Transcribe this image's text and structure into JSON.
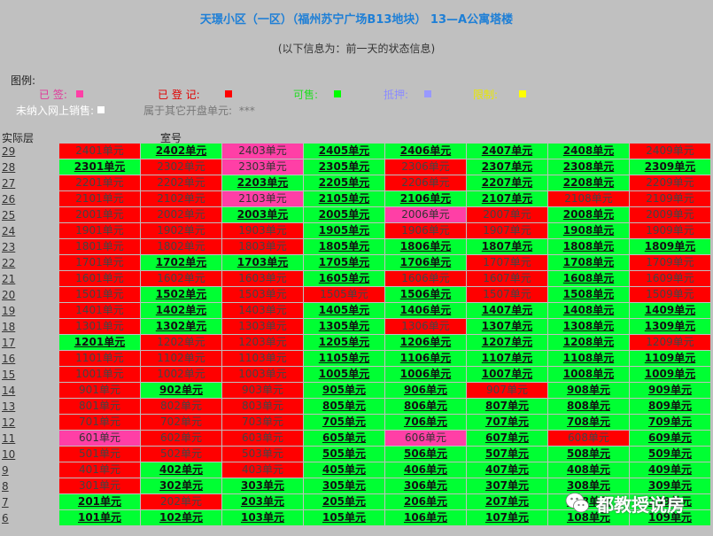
{
  "header": {
    "title": "天璟小区（一区）（福州苏宁广场B13地块） 13—A公寓塔楼",
    "subtitle": "(以下信息为：前一天的状态信息)"
  },
  "legend": {
    "title": "图例:",
    "items": [
      {
        "key": "signed",
        "label": "已 签:",
        "text_color": "#e0389a",
        "swatch": "#ff3fa6"
      },
      {
        "key": "registered",
        "label": "已 登 记:",
        "text_color": "#e00000",
        "swatch": "#ff0000"
      },
      {
        "key": "available",
        "label": "可售:",
        "text_color": "#22dd22",
        "swatch": "#00ff00"
      },
      {
        "key": "mortgaged",
        "label": "抵押:",
        "text_color": "#8c8cff",
        "swatch": "#9999ff"
      },
      {
        "key": "restricted",
        "label": "限制:",
        "text_color": "#e8e800",
        "swatch": "#ffff00"
      },
      {
        "key": "not_online",
        "label": "未纳入网上销售:",
        "text_color": "#ffffff",
        "swatch": "#ffffff"
      },
      {
        "key": "other_batch",
        "label": "属于其它开盘单元:",
        "text_color": "#777777",
        "stars": "***"
      }
    ]
  },
  "table": {
    "floor_header": "实际层",
    "room_header": "室号",
    "status_colors": {
      "A": "#00ff33",
      "R": "#ff0000",
      "S": "#ff3fa6"
    },
    "floors": [
      {
        "floor": "29",
        "units": [
          {
            "label": "2401单元",
            "status": "R"
          },
          {
            "label": "2402单元",
            "status": "A"
          },
          {
            "label": "2403单元",
            "status": "S"
          },
          {
            "label": "2405单元",
            "status": "A"
          },
          {
            "label": "2406单元",
            "status": "A"
          },
          {
            "label": "2407单元",
            "status": "A"
          },
          {
            "label": "2408单元",
            "status": "A"
          },
          {
            "label": "2409单元",
            "status": "R"
          }
        ]
      },
      {
        "floor": "28",
        "units": [
          {
            "label": "2301单元",
            "status": "A"
          },
          {
            "label": "2302单元",
            "status": "R"
          },
          {
            "label": "2303单元",
            "status": "S"
          },
          {
            "label": "2305单元",
            "status": "A"
          },
          {
            "label": "2306单元",
            "status": "R"
          },
          {
            "label": "2307单元",
            "status": "A"
          },
          {
            "label": "2308单元",
            "status": "A"
          },
          {
            "label": "2309单元",
            "status": "A"
          }
        ]
      },
      {
        "floor": "27",
        "units": [
          {
            "label": "2201单元",
            "status": "R"
          },
          {
            "label": "2202单元",
            "status": "R"
          },
          {
            "label": "2203单元",
            "status": "A"
          },
          {
            "label": "2205单元",
            "status": "A"
          },
          {
            "label": "2206单元",
            "status": "R"
          },
          {
            "label": "2207单元",
            "status": "A"
          },
          {
            "label": "2208单元",
            "status": "A"
          },
          {
            "label": "2209单元",
            "status": "R"
          }
        ]
      },
      {
        "floor": "26",
        "units": [
          {
            "label": "2101单元",
            "status": "R"
          },
          {
            "label": "2102单元",
            "status": "R"
          },
          {
            "label": "2103单元",
            "status": "S"
          },
          {
            "label": "2105单元",
            "status": "A"
          },
          {
            "label": "2106单元",
            "status": "A"
          },
          {
            "label": "2107单元",
            "status": "A"
          },
          {
            "label": "2108单元",
            "status": "R"
          },
          {
            "label": "2109单元",
            "status": "R"
          }
        ]
      },
      {
        "floor": "25",
        "units": [
          {
            "label": "2001单元",
            "status": "R"
          },
          {
            "label": "2002单元",
            "status": "R"
          },
          {
            "label": "2003单元",
            "status": "A"
          },
          {
            "label": "2005单元",
            "status": "A"
          },
          {
            "label": "2006单元",
            "status": "S"
          },
          {
            "label": "2007单元",
            "status": "R"
          },
          {
            "label": "2008单元",
            "status": "A"
          },
          {
            "label": "2009单元",
            "status": "R"
          }
        ]
      },
      {
        "floor": "24",
        "units": [
          {
            "label": "1901单元",
            "status": "R"
          },
          {
            "label": "1902单元",
            "status": "R"
          },
          {
            "label": "1903单元",
            "status": "R"
          },
          {
            "label": "1905单元",
            "status": "A"
          },
          {
            "label": "1906单元",
            "status": "R"
          },
          {
            "label": "1907单元",
            "status": "R"
          },
          {
            "label": "1908单元",
            "status": "A"
          },
          {
            "label": "1909单元",
            "status": "R"
          }
        ]
      },
      {
        "floor": "23",
        "units": [
          {
            "label": "1801单元",
            "status": "R"
          },
          {
            "label": "1802单元",
            "status": "R"
          },
          {
            "label": "1803单元",
            "status": "R"
          },
          {
            "label": "1805单元",
            "status": "A"
          },
          {
            "label": "1806单元",
            "status": "A"
          },
          {
            "label": "1807单元",
            "status": "A"
          },
          {
            "label": "1808单元",
            "status": "A"
          },
          {
            "label": "1809单元",
            "status": "A"
          }
        ]
      },
      {
        "floor": "22",
        "units": [
          {
            "label": "1701单元",
            "status": "R"
          },
          {
            "label": "1702单元",
            "status": "A"
          },
          {
            "label": "1703单元",
            "status": "A"
          },
          {
            "label": "1705单元",
            "status": "A"
          },
          {
            "label": "1706单元",
            "status": "A"
          },
          {
            "label": "1707单元",
            "status": "R"
          },
          {
            "label": "1708单元",
            "status": "A"
          },
          {
            "label": "1709单元",
            "status": "R"
          }
        ]
      },
      {
        "floor": "21",
        "units": [
          {
            "label": "1601单元",
            "status": "R"
          },
          {
            "label": "1602单元",
            "status": "R"
          },
          {
            "label": "1603单元",
            "status": "R"
          },
          {
            "label": "1605单元",
            "status": "A"
          },
          {
            "label": "1606单元",
            "status": "R"
          },
          {
            "label": "1607单元",
            "status": "R"
          },
          {
            "label": "1608单元",
            "status": "A"
          },
          {
            "label": "1609单元",
            "status": "R"
          }
        ]
      },
      {
        "floor": "20",
        "units": [
          {
            "label": "1501单元",
            "status": "R"
          },
          {
            "label": "1502单元",
            "status": "A"
          },
          {
            "label": "1503单元",
            "status": "R"
          },
          {
            "label": "1505单元",
            "status": "R"
          },
          {
            "label": "1506单元",
            "status": "A"
          },
          {
            "label": "1507单元",
            "status": "R"
          },
          {
            "label": "1508单元",
            "status": "A"
          },
          {
            "label": "1509单元",
            "status": "R"
          }
        ]
      },
      {
        "floor": "19",
        "units": [
          {
            "label": "1401单元",
            "status": "R"
          },
          {
            "label": "1402单元",
            "status": "A"
          },
          {
            "label": "1403单元",
            "status": "R"
          },
          {
            "label": "1405单元",
            "status": "A"
          },
          {
            "label": "1406单元",
            "status": "A"
          },
          {
            "label": "1407单元",
            "status": "A"
          },
          {
            "label": "1408单元",
            "status": "A"
          },
          {
            "label": "1409单元",
            "status": "A"
          }
        ]
      },
      {
        "floor": "18",
        "units": [
          {
            "label": "1301单元",
            "status": "R"
          },
          {
            "label": "1302单元",
            "status": "A"
          },
          {
            "label": "1303单元",
            "status": "R"
          },
          {
            "label": "1305单元",
            "status": "A"
          },
          {
            "label": "1306单元",
            "status": "R"
          },
          {
            "label": "1307单元",
            "status": "A"
          },
          {
            "label": "1308单元",
            "status": "A"
          },
          {
            "label": "1309单元",
            "status": "A"
          }
        ]
      },
      {
        "floor": "17",
        "units": [
          {
            "label": "1201单元",
            "status": "A"
          },
          {
            "label": "1202单元",
            "status": "R"
          },
          {
            "label": "1203单元",
            "status": "R"
          },
          {
            "label": "1205单元",
            "status": "A"
          },
          {
            "label": "1206单元",
            "status": "A"
          },
          {
            "label": "1207单元",
            "status": "A"
          },
          {
            "label": "1208单元",
            "status": "A"
          },
          {
            "label": "1209单元",
            "status": "R"
          }
        ]
      },
      {
        "floor": "16",
        "units": [
          {
            "label": "1101单元",
            "status": "R"
          },
          {
            "label": "1102单元",
            "status": "R"
          },
          {
            "label": "1103单元",
            "status": "R"
          },
          {
            "label": "1105单元",
            "status": "A"
          },
          {
            "label": "1106单元",
            "status": "A"
          },
          {
            "label": "1107单元",
            "status": "A"
          },
          {
            "label": "1108单元",
            "status": "A"
          },
          {
            "label": "1109单元",
            "status": "A"
          }
        ]
      },
      {
        "floor": "15",
        "units": [
          {
            "label": "1001单元",
            "status": "R"
          },
          {
            "label": "1002单元",
            "status": "R"
          },
          {
            "label": "1003单元",
            "status": "R"
          },
          {
            "label": "1005单元",
            "status": "A"
          },
          {
            "label": "1006单元",
            "status": "A"
          },
          {
            "label": "1007单元",
            "status": "A"
          },
          {
            "label": "1008单元",
            "status": "A"
          },
          {
            "label": "1009单元",
            "status": "A"
          }
        ]
      },
      {
        "floor": "14",
        "units": [
          {
            "label": "901单元",
            "status": "R"
          },
          {
            "label": "902单元",
            "status": "A"
          },
          {
            "label": "903单元",
            "status": "R"
          },
          {
            "label": "905单元",
            "status": "A"
          },
          {
            "label": "906单元",
            "status": "A"
          },
          {
            "label": "907单元",
            "status": "R"
          },
          {
            "label": "908单元",
            "status": "A"
          },
          {
            "label": "909单元",
            "status": "A"
          }
        ]
      },
      {
        "floor": "13",
        "units": [
          {
            "label": "801单元",
            "status": "R"
          },
          {
            "label": "802单元",
            "status": "R"
          },
          {
            "label": "803单元",
            "status": "R"
          },
          {
            "label": "805单元",
            "status": "A"
          },
          {
            "label": "806单元",
            "status": "A"
          },
          {
            "label": "807单元",
            "status": "A"
          },
          {
            "label": "808单元",
            "status": "A"
          },
          {
            "label": "809单元",
            "status": "A"
          }
        ]
      },
      {
        "floor": "12",
        "units": [
          {
            "label": "701单元",
            "status": "R"
          },
          {
            "label": "702单元",
            "status": "R"
          },
          {
            "label": "703单元",
            "status": "R"
          },
          {
            "label": "705单元",
            "status": "A"
          },
          {
            "label": "706单元",
            "status": "A"
          },
          {
            "label": "707单元",
            "status": "A"
          },
          {
            "label": "708单元",
            "status": "A"
          },
          {
            "label": "709单元",
            "status": "A"
          }
        ]
      },
      {
        "floor": "11",
        "units": [
          {
            "label": "601单元",
            "status": "S"
          },
          {
            "label": "602单元",
            "status": "R"
          },
          {
            "label": "603单元",
            "status": "R"
          },
          {
            "label": "605单元",
            "status": "A"
          },
          {
            "label": "606单元",
            "status": "S"
          },
          {
            "label": "607单元",
            "status": "A"
          },
          {
            "label": "608单元",
            "status": "R"
          },
          {
            "label": "609单元",
            "status": "A"
          }
        ]
      },
      {
        "floor": "10",
        "units": [
          {
            "label": "501单元",
            "status": "R"
          },
          {
            "label": "502单元",
            "status": "R"
          },
          {
            "label": "503单元",
            "status": "R"
          },
          {
            "label": "505单元",
            "status": "A"
          },
          {
            "label": "506单元",
            "status": "A"
          },
          {
            "label": "507单元",
            "status": "A"
          },
          {
            "label": "508单元",
            "status": "A"
          },
          {
            "label": "509单元",
            "status": "A"
          }
        ]
      },
      {
        "floor": "9",
        "units": [
          {
            "label": "401单元",
            "status": "R"
          },
          {
            "label": "402单元",
            "status": "A"
          },
          {
            "label": "403单元",
            "status": "R"
          },
          {
            "label": "405单元",
            "status": "A"
          },
          {
            "label": "406单元",
            "status": "A"
          },
          {
            "label": "407单元",
            "status": "A"
          },
          {
            "label": "408单元",
            "status": "A"
          },
          {
            "label": "409单元",
            "status": "A"
          }
        ]
      },
      {
        "floor": "8",
        "units": [
          {
            "label": "301单元",
            "status": "R"
          },
          {
            "label": "302单元",
            "status": "A"
          },
          {
            "label": "303单元",
            "status": "A"
          },
          {
            "label": "305单元",
            "status": "A"
          },
          {
            "label": "306单元",
            "status": "A"
          },
          {
            "label": "307单元",
            "status": "A"
          },
          {
            "label": "308单元",
            "status": "A"
          },
          {
            "label": "309单元",
            "status": "A"
          }
        ]
      },
      {
        "floor": "7",
        "units": [
          {
            "label": "201单元",
            "status": "A"
          },
          {
            "label": "202单元",
            "status": "R"
          },
          {
            "label": "203单元",
            "status": "A"
          },
          {
            "label": "205单元",
            "status": "A"
          },
          {
            "label": "206单元",
            "status": "A"
          },
          {
            "label": "207单元",
            "status": "A"
          },
          {
            "label": "208单元",
            "status": "A"
          },
          {
            "label": "209单元",
            "status": "A"
          }
        ]
      },
      {
        "floor": "6",
        "units": [
          {
            "label": "101单元",
            "status": "A"
          },
          {
            "label": "102单元",
            "status": "A"
          },
          {
            "label": "103单元",
            "status": "A"
          },
          {
            "label": "105单元",
            "status": "A"
          },
          {
            "label": "106单元",
            "status": "A"
          },
          {
            "label": "107单元",
            "status": "A"
          },
          {
            "label": "108单元",
            "status": "A"
          },
          {
            "label": "109单元",
            "status": "A"
          }
        ]
      }
    ]
  },
  "watermark": {
    "text": "都教授说房",
    "icon": "wechat-icon"
  }
}
